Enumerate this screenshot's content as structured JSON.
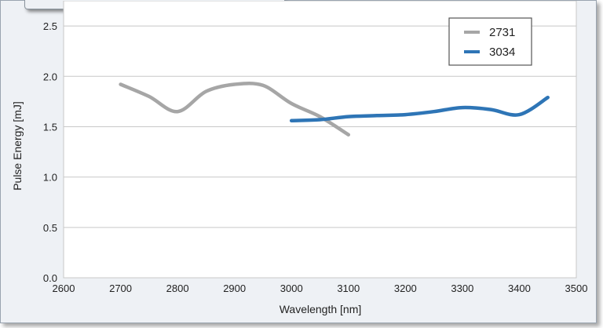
{
  "chart_data": {
    "type": "line",
    "title": "",
    "xlabel": "Wavelength [nm]",
    "ylabel": "Pulse Energy [mJ]",
    "xlim": [
      2600,
      3500
    ],
    "ylim": [
      0.0,
      2.75
    ],
    "xticks": [
      "2600",
      "2700",
      "2800",
      "2900",
      "3000",
      "3100",
      "3200",
      "3300",
      "3400",
      "3500"
    ],
    "yticks": [
      "0.0",
      "0.5",
      "1.0",
      "1.5",
      "2.0",
      "2.5"
    ],
    "grid": "horizontal",
    "legend": "top-right",
    "series": [
      {
        "name": "2731",
        "color": "#a6a6a6",
        "x": [
          2700,
          2750,
          2800,
          2850,
          2900,
          2950,
          3000,
          3050,
          3100
        ],
        "y": [
          1.92,
          1.8,
          1.65,
          1.85,
          1.92,
          1.91,
          1.73,
          1.6,
          1.42
        ]
      },
      {
        "name": "3034",
        "color": "#2e75b6",
        "x": [
          3000,
          3050,
          3100,
          3150,
          3200,
          3250,
          3300,
          3350,
          3400,
          3450
        ],
        "y": [
          1.56,
          1.57,
          1.6,
          1.61,
          1.62,
          1.65,
          1.69,
          1.67,
          1.62,
          1.79
        ]
      }
    ]
  }
}
